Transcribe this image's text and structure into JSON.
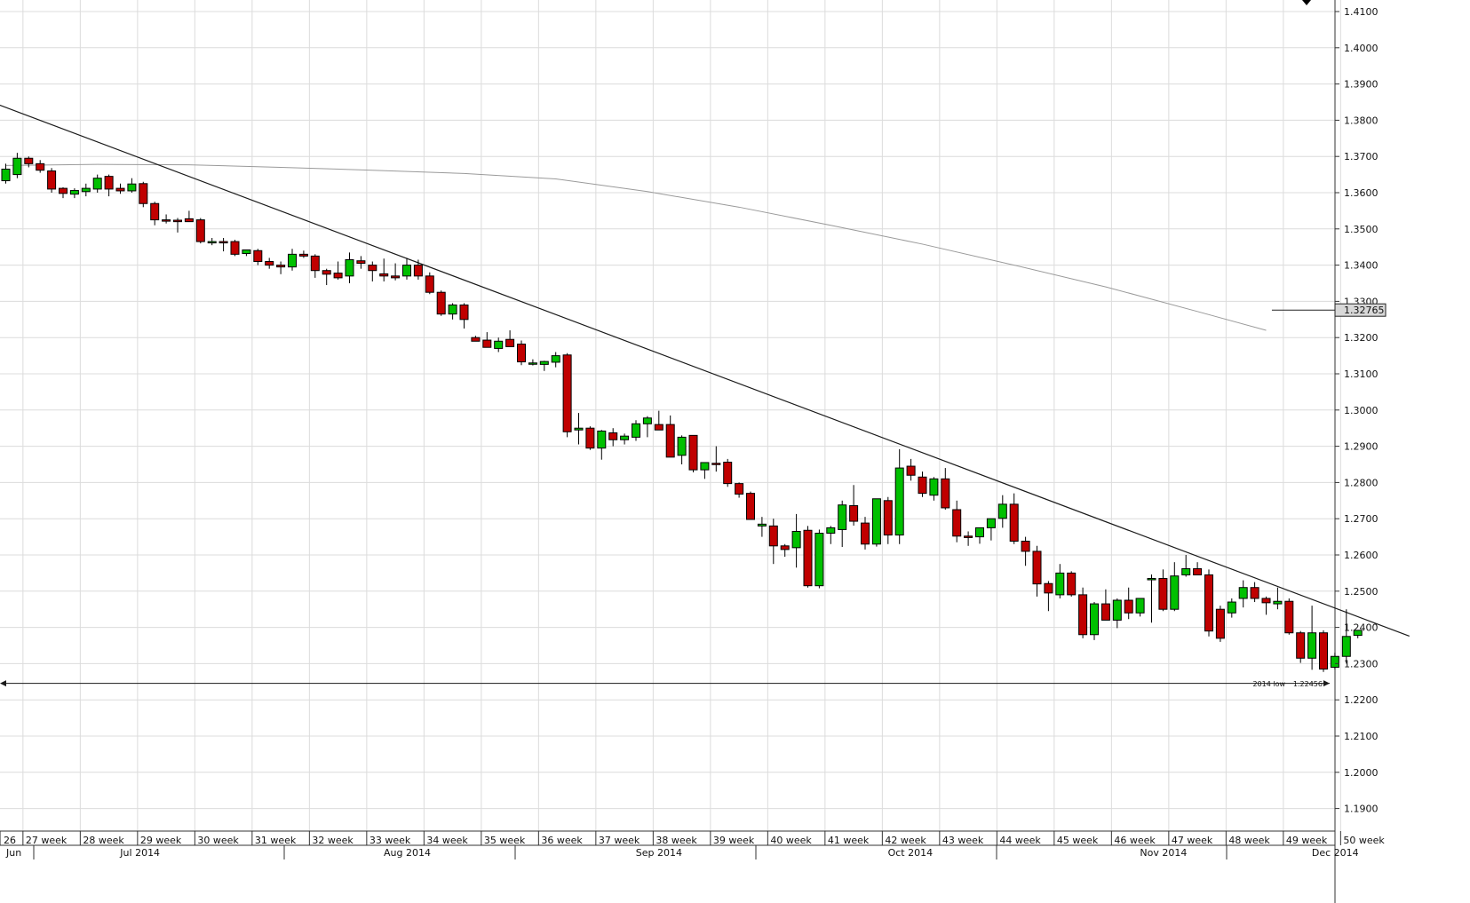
{
  "chart_data": {
    "type": "candlestick",
    "instrument_note": "",
    "y_range": [
      1.182,
      1.412
    ],
    "y_ticks": [
      "1.4100",
      "1.4000",
      "1.3900",
      "1.3800",
      "1.3700",
      "1.3600",
      "1.3500",
      "1.3400",
      "1.3300",
      "1.3200",
      "1.3100",
      "1.3000",
      "1.2900",
      "1.2800",
      "1.2700",
      "1.2600",
      "1.2500",
      "1.2400",
      "1.2300",
      "1.2200",
      "1.2100",
      "1.2000",
      "1.1900"
    ],
    "week_labels": [
      "26",
      "27 week",
      "28 week",
      "29 week",
      "30 week",
      "31 week",
      "32 week",
      "33 week",
      "34 week",
      "35 week",
      "36 week",
      "37 week",
      "38 week",
      "39 week",
      "40 week",
      "41 week",
      "42 week",
      "43 week",
      "44 week",
      "45 week",
      "46 week",
      "47 week",
      "48 week",
      "49 week",
      "50 week"
    ],
    "month_labels": [
      {
        "label": "Jun",
        "at_candle": 0
      },
      {
        "label": "Jul 2014",
        "at_candle": 12
      },
      {
        "label": "Aug 2014",
        "at_candle": 35
      },
      {
        "label": "Sep 2014",
        "at_candle": 57
      },
      {
        "label": "Oct 2014",
        "at_candle": 79
      },
      {
        "label": "Nov 2014",
        "at_candle": 101
      },
      {
        "label": "Dec 2014",
        "at_candle": 116
      }
    ],
    "current_price": "1.32765",
    "horizontal_line": {
      "value": 1.22456,
      "label": "2014 low",
      "value_label": "1.22456"
    },
    "trendline": {
      "from": {
        "candle": -0.5,
        "price": 1.3845
      },
      "to": {
        "candle": 122.5,
        "price": 1.2376
      }
    },
    "moving_average": [
      [
        0,
        1.3675
      ],
      [
        8,
        1.3678
      ],
      [
        16,
        1.3677
      ],
      [
        24,
        1.367
      ],
      [
        32,
        1.3662
      ],
      [
        40,
        1.3653
      ],
      [
        48,
        1.3638
      ],
      [
        56,
        1.3603
      ],
      [
        64,
        1.356
      ],
      [
        72,
        1.351
      ],
      [
        80,
        1.3458
      ],
      [
        88,
        1.34
      ],
      [
        96,
        1.334
      ],
      [
        104,
        1.3272
      ],
      [
        110,
        1.322
      ],
      [
        117,
        1.3276
      ]
    ],
    "candles": [
      [
        1.3633,
        1.368,
        1.3625,
        1.3665
      ],
      [
        1.365,
        1.371,
        1.364,
        1.3695
      ],
      [
        1.3695,
        1.37,
        1.367,
        1.368
      ],
      [
        1.368,
        1.369,
        1.3655,
        1.3662
      ],
      [
        1.366,
        1.3668,
        1.36,
        1.361
      ],
      [
        1.3612,
        1.3615,
        1.3585,
        1.3598
      ],
      [
        1.3596,
        1.3612,
        1.3585,
        1.3606
      ],
      [
        1.3603,
        1.3625,
        1.359,
        1.3612
      ],
      [
        1.361,
        1.365,
        1.36,
        1.364
      ],
      [
        1.3645,
        1.365,
        1.359,
        1.361
      ],
      [
        1.3612,
        1.3625,
        1.3597,
        1.3605
      ],
      [
        1.3605,
        1.364,
        1.36,
        1.3624
      ],
      [
        1.3625,
        1.363,
        1.356,
        1.357
      ],
      [
        1.357,
        1.3575,
        1.351,
        1.3525
      ],
      [
        1.3525,
        1.354,
        1.3515,
        1.3522
      ],
      [
        1.3524,
        1.353,
        1.349,
        1.352
      ],
      [
        1.3528,
        1.355,
        1.352,
        1.352
      ],
      [
        1.3525,
        1.353,
        1.346,
        1.3465
      ],
      [
        1.3465,
        1.3475,
        1.3455,
        1.3465
      ],
      [
        1.3465,
        1.3475,
        1.3438,
        1.3464
      ],
      [
        1.3465,
        1.347,
        1.3425,
        1.343
      ],
      [
        1.3432,
        1.344,
        1.3425,
        1.3442
      ],
      [
        1.344,
        1.3445,
        1.34,
        1.341
      ],
      [
        1.341,
        1.342,
        1.339,
        1.34
      ],
      [
        1.34,
        1.341,
        1.3375,
        1.3395
      ],
      [
        1.3395,
        1.3445,
        1.3385,
        1.343
      ],
      [
        1.343,
        1.344,
        1.342,
        1.3425
      ],
      [
        1.3425,
        1.343,
        1.3365,
        1.3385
      ],
      [
        1.3385,
        1.339,
        1.3345,
        1.3375
      ],
      [
        1.3378,
        1.341,
        1.336,
        1.3365
      ],
      [
        1.337,
        1.3435,
        1.335,
        1.3415
      ],
      [
        1.3412,
        1.3425,
        1.339,
        1.3405
      ],
      [
        1.34,
        1.341,
        1.3355,
        1.3385
      ],
      [
        1.3376,
        1.3418,
        1.3355,
        1.337
      ],
      [
        1.337,
        1.3405,
        1.3358,
        1.3365
      ],
      [
        1.337,
        1.342,
        1.336,
        1.34
      ],
      [
        1.34,
        1.3415,
        1.336,
        1.337
      ],
      [
        1.337,
        1.338,
        1.332,
        1.3325
      ],
      [
        1.3325,
        1.333,
        1.326,
        1.3265
      ],
      [
        1.3265,
        1.3295,
        1.325,
        1.329
      ],
      [
        1.329,
        1.3295,
        1.3225,
        1.325
      ],
      [
        1.32,
        1.3205,
        1.319,
        1.319
      ],
      [
        1.3193,
        1.3215,
        1.3173,
        1.3173
      ],
      [
        1.317,
        1.32,
        1.316,
        1.319
      ],
      [
        1.3195,
        1.322,
        1.3175,
        1.3175
      ],
      [
        1.3182,
        1.3192,
        1.3124,
        1.3133
      ],
      [
        1.313,
        1.314,
        1.3123,
        1.313
      ],
      [
        1.3126,
        1.3136,
        1.3108,
        1.3134
      ],
      [
        1.3132,
        1.316,
        1.3118,
        1.315
      ],
      [
        1.3152,
        1.3157,
        1.2925,
        1.294
      ],
      [
        1.2945,
        1.2992,
        1.2905,
        1.295
      ],
      [
        1.295,
        1.2955,
        1.289,
        1.2895
      ],
      [
        1.2895,
        1.2945,
        1.2863,
        1.2942
      ],
      [
        1.2937,
        1.295,
        1.29,
        1.2918
      ],
      [
        1.2918,
        1.2935,
        1.2905,
        1.2928
      ],
      [
        1.2925,
        1.2972,
        1.2915,
        1.2962
      ],
      [
        1.2962,
        1.2983,
        1.2925,
        1.2978
      ],
      [
        1.296,
        1.2998,
        1.2945,
        1.2945
      ],
      [
        1.296,
        1.2985,
        1.287,
        1.287
      ],
      [
        1.2875,
        1.293,
        1.285,
        1.2925
      ],
      [
        1.293,
        1.293,
        1.2828,
        1.2835
      ],
      [
        1.2835,
        1.2855,
        1.281,
        1.2855
      ],
      [
        1.2853,
        1.29,
        1.283,
        1.285
      ],
      [
        1.2856,
        1.2865,
        1.2788,
        1.2797
      ],
      [
        1.2797,
        1.28,
        1.2758,
        1.2768
      ],
      [
        1.277,
        1.2775,
        1.2698,
        1.2698
      ],
      [
        1.268,
        1.2705,
        1.265,
        1.2685
      ],
      [
        1.268,
        1.27,
        1.2575,
        1.2625
      ],
      [
        1.2625,
        1.263,
        1.2595,
        1.2615
      ],
      [
        1.262,
        1.2713,
        1.2565,
        1.2665
      ],
      [
        1.2668,
        1.268,
        1.251,
        1.2515
      ],
      [
        1.2515,
        1.267,
        1.2508,
        1.266
      ],
      [
        1.266,
        1.268,
        1.263,
        1.2675
      ],
      [
        1.267,
        1.275,
        1.2622,
        1.2738
      ],
      [
        1.2736,
        1.2793,
        1.2681,
        1.2693
      ],
      [
        1.2688,
        1.2705,
        1.2615,
        1.263
      ],
      [
        1.263,
        1.2755,
        1.2623,
        1.2755
      ],
      [
        1.275,
        1.276,
        1.263,
        1.2655
      ],
      [
        1.2655,
        1.2892,
        1.263,
        1.284
      ],
      [
        1.2845,
        1.2865,
        1.2805,
        1.282
      ],
      [
        1.2815,
        1.283,
        1.276,
        1.277
      ],
      [
        1.2765,
        1.2815,
        1.275,
        1.281
      ],
      [
        1.281,
        1.284,
        1.2725,
        1.273
      ],
      [
        1.2725,
        1.275,
        1.2635,
        1.2652
      ],
      [
        1.2652,
        1.2665,
        1.2625,
        1.2648
      ],
      [
        1.265,
        1.267,
        1.2631,
        1.2675
      ],
      [
        1.2675,
        1.27,
        1.264,
        1.27
      ],
      [
        1.2701,
        1.2765,
        1.2675,
        1.274
      ],
      [
        1.274,
        1.277,
        1.263,
        1.2638
      ],
      [
        1.2638,
        1.265,
        1.257,
        1.261
      ],
      [
        1.261,
        1.2625,
        1.2485,
        1.252
      ],
      [
        1.2521,
        1.2528,
        1.2445,
        1.2495
      ],
      [
        1.249,
        1.2575,
        1.248,
        1.255
      ],
      [
        1.255,
        1.2555,
        1.2485,
        1.249
      ],
      [
        1.249,
        1.251,
        1.237,
        1.238
      ],
      [
        1.238,
        1.247,
        1.2365,
        1.2465
      ],
      [
        1.2465,
        1.2505,
        1.242,
        1.242
      ],
      [
        1.242,
        1.248,
        1.2398,
        1.2475
      ],
      [
        1.2475,
        1.251,
        1.2423,
        1.244
      ],
      [
        1.244,
        1.248,
        1.243,
        1.248
      ],
      [
        1.2535,
        1.2546,
        1.2413,
        1.2535
      ],
      [
        1.2535,
        1.256,
        1.2445,
        1.245
      ],
      [
        1.245,
        1.258,
        1.2445,
        1.2542
      ],
      [
        1.2545,
        1.26,
        1.254,
        1.2562
      ],
      [
        1.2562,
        1.258,
        1.2545,
        1.2545
      ],
      [
        1.2545,
        1.256,
        1.2375,
        1.239
      ],
      [
        1.245,
        1.246,
        1.236,
        1.237
      ],
      [
        1.244,
        1.248,
        1.2427,
        1.247
      ],
      [
        1.248,
        1.253,
        1.2455,
        1.251
      ],
      [
        1.251,
        1.2525,
        1.247,
        1.248
      ],
      [
        1.248,
        1.2485,
        1.2435,
        1.2468
      ],
      [
        1.2465,
        1.251,
        1.245,
        1.2472
      ],
      [
        1.2472,
        1.248,
        1.238,
        1.2385
      ],
      [
        1.2385,
        1.239,
        1.2302,
        1.2315
      ],
      [
        1.2315,
        1.246,
        1.2283,
        1.2385
      ],
      [
        1.2385,
        1.2392,
        1.2277,
        1.2285
      ],
      [
        1.229,
        1.233,
        1.2284,
        1.232
      ],
      [
        1.232,
        1.245,
        1.23,
        1.2375
      ],
      [
        1.2378,
        1.2392,
        1.237,
        1.2392
      ]
    ]
  }
}
